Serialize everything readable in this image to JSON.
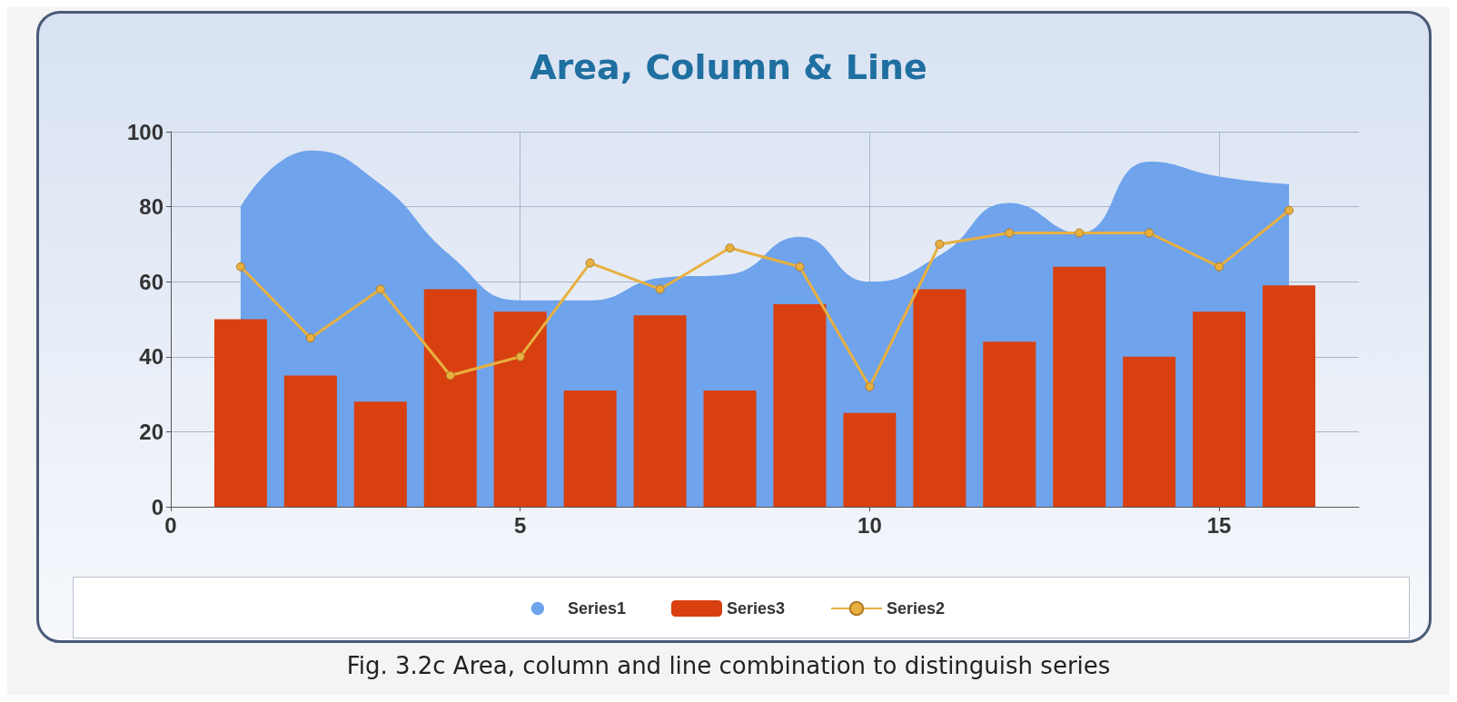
{
  "chart_data": {
    "type": "bar",
    "title": "Area, Column & Line",
    "x": [
      1,
      2,
      3,
      4,
      5,
      6,
      7,
      8,
      9,
      10,
      11,
      12,
      13,
      14,
      15,
      16
    ],
    "series": [
      {
        "name": "Series1",
        "type": "area",
        "color": "#6fa3ec",
        "values": [
          80,
          95,
          86,
          67,
          55,
          55,
          61,
          62,
          72,
          60,
          67,
          81,
          73,
          92,
          88,
          86
        ]
      },
      {
        "name": "Series3",
        "color": "#d84010",
        "values": [
          50,
          35,
          28,
          58,
          52,
          31,
          51,
          31,
          54,
          25,
          58,
          44,
          64,
          40,
          52,
          59
        ]
      },
      {
        "name": "Series2",
        "type": "line",
        "color": "#e8b040",
        "marker": "circle",
        "values": [
          64,
          45,
          58,
          35,
          40,
          65,
          58,
          69,
          64,
          32,
          70,
          73,
          73,
          73,
          64,
          79
        ]
      }
    ],
    "xlim": [
      0,
      17
    ],
    "xticks": [
      0,
      5,
      10,
      15
    ],
    "ylim": [
      0,
      100
    ],
    "yticks": [
      0,
      20,
      40,
      60,
      80,
      100
    ],
    "grid": true,
    "legend": "bottom",
    "annotations": [
      "Fig. 3.2c Area, column and line combination to distinguish series"
    ]
  }
}
